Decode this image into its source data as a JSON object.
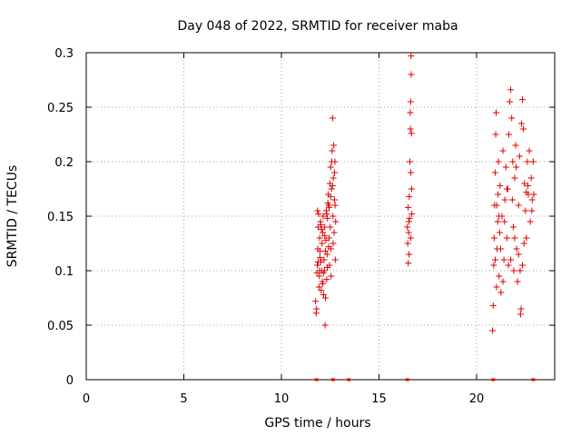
{
  "chart_data": {
    "type": "scatter",
    "title": "Day 048 of 2022, SRMTID for receiver maba",
    "xlabel": "GPS time / hours",
    "ylabel": "SRMTID / TECUs",
    "xlim": [
      0,
      24
    ],
    "ylim": [
      0,
      0.3
    ],
    "x_ticks": [
      0,
      5,
      10,
      15,
      20
    ],
    "y_ticks": [
      0,
      0.05,
      0.1,
      0.15,
      0.2,
      0.25,
      0.3
    ],
    "x_tick_labels": [
      "0",
      "5",
      "10",
      "15",
      "20"
    ],
    "y_tick_labels": [
      "0",
      "0.05",
      "0.1",
      "0.15",
      "0.2",
      "0.25",
      "0.3"
    ],
    "grid": true,
    "marker": "+",
    "color": "#e00000",
    "clusters": [
      {
        "x_range": [
          11.7,
          12.8
        ],
        "y_range": [
          0.05,
          0.24
        ],
        "note": "dense scatter"
      },
      {
        "x_range": [
          16.4,
          16.8
        ],
        "y_range": [
          0.107,
          0.297
        ],
        "note": "sparse scatter"
      },
      {
        "x_range": [
          20.8,
          22.95
        ],
        "y_range": [
          0.045,
          0.266
        ],
        "note": "dense scatter"
      }
    ],
    "points": [
      [
        11.75,
        0.072
      ],
      [
        11.78,
        0.061
      ],
      [
        11.8,
        0.065
      ],
      [
        11.82,
        0.098
      ],
      [
        11.84,
        0.105
      ],
      [
        11.86,
        0.12
      ],
      [
        11.88,
        0.14
      ],
      [
        11.9,
        0.152
      ],
      [
        11.92,
        0.085
      ],
      [
        11.94,
        0.095
      ],
      [
        11.96,
        0.13
      ],
      [
        11.98,
        0.118
      ],
      [
        12.0,
        0.145
      ],
      [
        12.02,
        0.108
      ],
      [
        12.04,
        0.082
      ],
      [
        12.06,
        0.1
      ],
      [
        12.08,
        0.125
      ],
      [
        12.1,
        0.09
      ],
      [
        12.12,
        0.135
      ],
      [
        12.14,
        0.15
      ],
      [
        12.16,
        0.078
      ],
      [
        12.18,
        0.11
      ],
      [
        12.2,
        0.1
      ],
      [
        12.22,
        0.14
      ],
      [
        12.24,
        0.05
      ],
      [
        12.26,
        0.075
      ],
      [
        12.28,
        0.128
      ],
      [
        12.3,
        0.155
      ],
      [
        12.32,
        0.092
      ],
      [
        12.34,
        0.115
      ],
      [
        12.36,
        0.148
      ],
      [
        12.38,
        0.162
      ],
      [
        12.4,
        0.17
      ],
      [
        12.42,
        0.16
      ],
      [
        12.44,
        0.13
      ],
      [
        12.46,
        0.105
      ],
      [
        12.48,
        0.18
      ],
      [
        12.5,
        0.14
      ],
      [
        12.52,
        0.195
      ],
      [
        12.54,
        0.12
      ],
      [
        12.56,
        0.175
      ],
      [
        12.58,
        0.2
      ],
      [
        12.6,
        0.21
      ],
      [
        12.62,
        0.24
      ],
      [
        12.64,
        0.15
      ],
      [
        12.66,
        0.185
      ],
      [
        12.68,
        0.215
      ],
      [
        12.7,
        0.135
      ],
      [
        12.72,
        0.165
      ],
      [
        12.74,
        0.2
      ],
      [
        12.76,
        0.11
      ],
      [
        12.78,
        0.145
      ],
      [
        11.85,
        0.155
      ],
      [
        11.95,
        0.1
      ],
      [
        12.05,
        0.138
      ],
      [
        12.15,
        0.098
      ],
      [
        12.25,
        0.118
      ],
      [
        12.35,
        0.103
      ],
      [
        12.45,
        0.158
      ],
      [
        12.55,
        0.095
      ],
      [
        12.65,
        0.125
      ],
      [
        12.75,
        0.16
      ],
      [
        11.88,
        0.108
      ],
      [
        12.02,
        0.142
      ],
      [
        12.12,
        0.088
      ],
      [
        12.22,
        0.132
      ],
      [
        12.32,
        0.152
      ],
      [
        12.42,
        0.122
      ],
      [
        12.52,
        0.168
      ],
      [
        12.62,
        0.178
      ],
      [
        12.72,
        0.19
      ],
      [
        11.98,
        0.112
      ],
      [
        16.45,
        0.14
      ],
      [
        16.47,
        0.125
      ],
      [
        16.49,
        0.158
      ],
      [
        16.5,
        0.107
      ],
      [
        16.52,
        0.135
      ],
      [
        16.54,
        0.115
      ],
      [
        16.55,
        0.168
      ],
      [
        16.56,
        0.148
      ],
      [
        16.58,
        0.2
      ],
      [
        16.6,
        0.245
      ],
      [
        16.61,
        0.23
      ],
      [
        16.62,
        0.255
      ],
      [
        16.63,
        0.19
      ],
      [
        16.64,
        0.297
      ],
      [
        16.65,
        0.28
      ],
      [
        16.66,
        0.226
      ],
      [
        16.67,
        0.175
      ],
      [
        16.68,
        0.152
      ],
      [
        16.62,
        0.13
      ],
      [
        16.53,
        0.145
      ],
      [
        20.82,
        0.045
      ],
      [
        20.85,
        0.068
      ],
      [
        20.88,
        0.105
      ],
      [
        20.9,
        0.13
      ],
      [
        20.92,
        0.16
      ],
      [
        20.95,
        0.19
      ],
      [
        20.98,
        0.225
      ],
      [
        21.0,
        0.245
      ],
      [
        21.02,
        0.085
      ],
      [
        21.05,
        0.12
      ],
      [
        21.08,
        0.145
      ],
      [
        21.1,
        0.17
      ],
      [
        21.12,
        0.2
      ],
      [
        21.15,
        0.095
      ],
      [
        21.18,
        0.135
      ],
      [
        21.2,
        0.178
      ],
      [
        21.25,
        0.08
      ],
      [
        21.3,
        0.15
      ],
      [
        21.35,
        0.21
      ],
      [
        21.4,
        0.11
      ],
      [
        21.45,
        0.165
      ],
      [
        21.5,
        0.195
      ],
      [
        21.55,
        0.13
      ],
      [
        21.6,
        0.175
      ],
      [
        21.65,
        0.225
      ],
      [
        21.7,
        0.255
      ],
      [
        21.75,
        0.266
      ],
      [
        21.8,
        0.24
      ],
      [
        21.85,
        0.2
      ],
      [
        21.88,
        0.14
      ],
      [
        21.9,
        0.1
      ],
      [
        21.95,
        0.185
      ],
      [
        22.0,
        0.215
      ],
      [
        22.05,
        0.12
      ],
      [
        22.1,
        0.09
      ],
      [
        22.15,
        0.16
      ],
      [
        22.2,
        0.205
      ],
      [
        22.25,
        0.06
      ],
      [
        22.28,
        0.065
      ],
      [
        22.3,
        0.235
      ],
      [
        22.35,
        0.257
      ],
      [
        22.4,
        0.23
      ],
      [
        22.45,
        0.18
      ],
      [
        22.5,
        0.155
      ],
      [
        22.55,
        0.13
      ],
      [
        22.6,
        0.2
      ],
      [
        22.65,
        0.17
      ],
      [
        22.7,
        0.21
      ],
      [
        22.75,
        0.145
      ],
      [
        22.8,
        0.185
      ],
      [
        22.85,
        0.165
      ],
      [
        22.9,
        0.2
      ],
      [
        22.93,
        0.17
      ],
      [
        21.03,
        0.16
      ],
      [
        21.23,
        0.12
      ],
      [
        21.43,
        0.145
      ],
      [
        21.63,
        0.105
      ],
      [
        21.83,
        0.165
      ],
      [
        22.03,
        0.195
      ],
      [
        22.23,
        0.1
      ],
      [
        22.43,
        0.125
      ],
      [
        22.63,
        0.178
      ],
      [
        22.83,
        0.155
      ],
      [
        20.95,
        0.11
      ],
      [
        21.15,
        0.15
      ],
      [
        21.35,
        0.09
      ],
      [
        21.55,
        0.175
      ],
      [
        21.75,
        0.11
      ],
      [
        21.95,
        0.13
      ],
      [
        22.15,
        0.115
      ],
      [
        22.35,
        0.105
      ],
      [
        22.55,
        0.172
      ]
    ],
    "baseline_points": [
      11.8,
      12.65,
      13.45,
      16.45,
      20.85,
      22.9
    ]
  }
}
